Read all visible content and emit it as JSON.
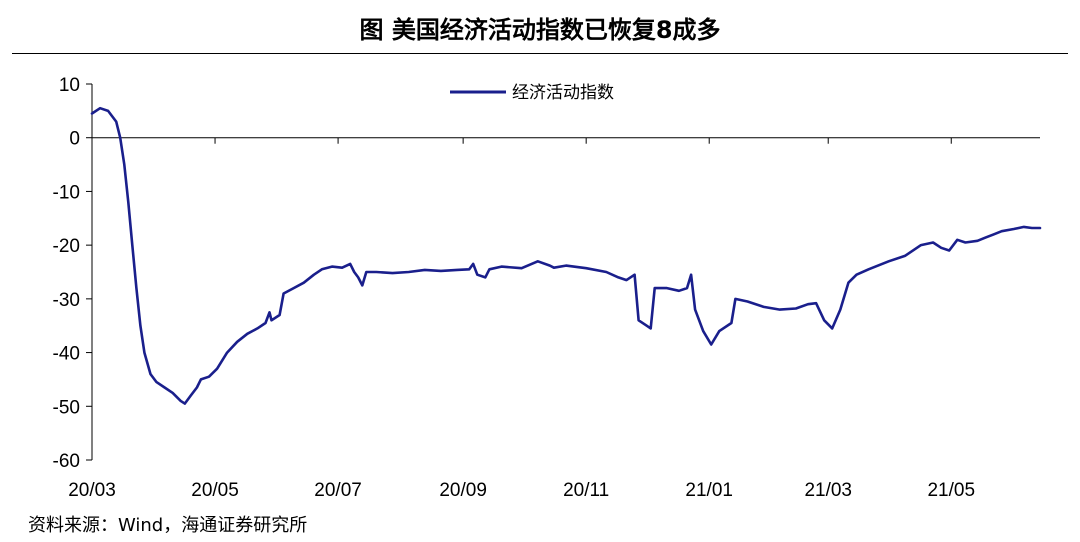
{
  "title": "图  美国经济活动指数已恢复8成多",
  "source": "资料来源：Wind，海通证券研究所",
  "chart_data": {
    "type": "line",
    "title": "图  美国经济活动指数已恢复8成多",
    "xlabel": "",
    "ylabel": "",
    "ylim": [
      -60,
      10
    ],
    "yticks": [
      10,
      0,
      -10,
      -20,
      -30,
      -40,
      -50,
      -60
    ],
    "xlim": [
      "2020-03-01",
      "2021-06-14"
    ],
    "xticks": [
      {
        "label": "20/03",
        "date": "2020-03-01"
      },
      {
        "label": "20/05",
        "date": "2020-05-01"
      },
      {
        "label": "20/07",
        "date": "2020-07-01"
      },
      {
        "label": "20/09",
        "date": "2020-09-01"
      },
      {
        "label": "20/11",
        "date": "2020-11-01"
      },
      {
        "label": "21/01",
        "date": "2021-01-01"
      },
      {
        "label": "21/03",
        "date": "2021-03-01"
      },
      {
        "label": "21/05",
        "date": "2021-05-01"
      }
    ],
    "grid": false,
    "legend_position": "top-center",
    "color": "#1a1f8c",
    "series": [
      {
        "name": "经济活动指数",
        "points": [
          [
            "2020-03-01",
            4.5
          ],
          [
            "2020-03-05",
            5.5
          ],
          [
            "2020-03-09",
            5
          ],
          [
            "2020-03-13",
            3
          ],
          [
            "2020-03-15",
            0
          ],
          [
            "2020-03-17",
            -5
          ],
          [
            "2020-03-19",
            -12
          ],
          [
            "2020-03-21",
            -20
          ],
          [
            "2020-03-23",
            -28
          ],
          [
            "2020-03-25",
            -35
          ],
          [
            "2020-03-27",
            -40
          ],
          [
            "2020-03-30",
            -44
          ],
          [
            "2020-04-02",
            -45.5
          ],
          [
            "2020-04-06",
            -46.5
          ],
          [
            "2020-04-10",
            -47.5
          ],
          [
            "2020-04-14",
            -49
          ],
          [
            "2020-04-16",
            -49.5
          ],
          [
            "2020-04-19",
            -48
          ],
          [
            "2020-04-22",
            -46.5
          ],
          [
            "2020-04-24",
            -45
          ],
          [
            "2020-04-28",
            -44.5
          ],
          [
            "2020-05-02",
            -43
          ],
          [
            "2020-05-07",
            -40
          ],
          [
            "2020-05-12",
            -38
          ],
          [
            "2020-05-17",
            -36.5
          ],
          [
            "2020-05-22",
            -35.5
          ],
          [
            "2020-05-26",
            -34.5
          ],
          [
            "2020-05-28",
            -32.5
          ],
          [
            "2020-05-29",
            -34
          ],
          [
            "2020-06-02",
            -33
          ],
          [
            "2020-06-04",
            -29
          ],
          [
            "2020-06-09",
            -28
          ],
          [
            "2020-06-14",
            -27
          ],
          [
            "2020-06-19",
            -25.5
          ],
          [
            "2020-06-23",
            -24.5
          ],
          [
            "2020-06-28",
            -24
          ],
          [
            "2020-07-03",
            -24.2
          ],
          [
            "2020-07-07",
            -23.5
          ],
          [
            "2020-07-09",
            -25
          ],
          [
            "2020-07-11",
            -26
          ],
          [
            "2020-07-13",
            -27.5
          ],
          [
            "2020-07-15",
            -25
          ],
          [
            "2020-07-20",
            -25
          ],
          [
            "2020-07-28",
            -25.2
          ],
          [
            "2020-08-05",
            -25
          ],
          [
            "2020-08-13",
            -24.6
          ],
          [
            "2020-08-21",
            -24.8
          ],
          [
            "2020-08-29",
            -24.6
          ],
          [
            "2020-09-04",
            -24.5
          ],
          [
            "2020-09-06",
            -23.5
          ],
          [
            "2020-09-08",
            -25.5
          ],
          [
            "2020-09-12",
            -26
          ],
          [
            "2020-09-14",
            -24.5
          ],
          [
            "2020-09-20",
            -24
          ],
          [
            "2020-09-30",
            -24.3
          ],
          [
            "2020-10-08",
            -23
          ],
          [
            "2020-10-14",
            -23.8
          ],
          [
            "2020-10-16",
            -24.2
          ],
          [
            "2020-10-22",
            -23.8
          ],
          [
            "2020-11-01",
            -24.3
          ],
          [
            "2020-11-11",
            -25
          ],
          [
            "2020-11-17",
            -26
          ],
          [
            "2020-11-21",
            -26.5
          ],
          [
            "2020-11-25",
            -25.5
          ],
          [
            "2020-11-27",
            -34
          ],
          [
            "2020-12-01",
            -35
          ],
          [
            "2020-12-03",
            -35.5
          ],
          [
            "2020-12-05",
            -28
          ],
          [
            "2020-12-11",
            -28
          ],
          [
            "2020-12-17",
            -28.5
          ],
          [
            "2020-12-21",
            -28
          ],
          [
            "2020-12-23",
            -25.5
          ],
          [
            "2020-12-25",
            -32
          ],
          [
            "2020-12-29",
            -36
          ],
          [
            "2021-01-02",
            -38.5
          ],
          [
            "2021-01-06",
            -36
          ],
          [
            "2021-01-12",
            -34.5
          ],
          [
            "2021-01-14",
            -30
          ],
          [
            "2021-01-20",
            -30.5
          ],
          [
            "2021-01-28",
            -31.5
          ],
          [
            "2021-02-05",
            -32
          ],
          [
            "2021-02-13",
            -31.8
          ],
          [
            "2021-02-19",
            -31
          ],
          [
            "2021-02-23",
            -30.8
          ],
          [
            "2021-02-27",
            -34
          ],
          [
            "2021-03-03",
            -35.5
          ],
          [
            "2021-03-07",
            -32
          ],
          [
            "2021-03-11",
            -27
          ],
          [
            "2021-03-15",
            -25.5
          ],
          [
            "2021-03-21",
            -24.5
          ],
          [
            "2021-03-31",
            -23
          ],
          [
            "2021-04-08",
            -22
          ],
          [
            "2021-04-16",
            -20
          ],
          [
            "2021-04-22",
            -19.5
          ],
          [
            "2021-04-26",
            -20.5
          ],
          [
            "2021-04-30",
            -21
          ],
          [
            "2021-05-04",
            -19
          ],
          [
            "2021-05-08",
            -19.5
          ],
          [
            "2021-05-14",
            -19.2
          ],
          [
            "2021-05-18",
            -18.6
          ],
          [
            "2021-05-22",
            -18
          ],
          [
            "2021-05-26",
            -17.4
          ],
          [
            "2021-06-01",
            -17
          ],
          [
            "2021-06-06",
            -16.6
          ],
          [
            "2021-06-10",
            -16.8
          ],
          [
            "2021-06-14",
            -16.8
          ]
        ]
      }
    ]
  }
}
